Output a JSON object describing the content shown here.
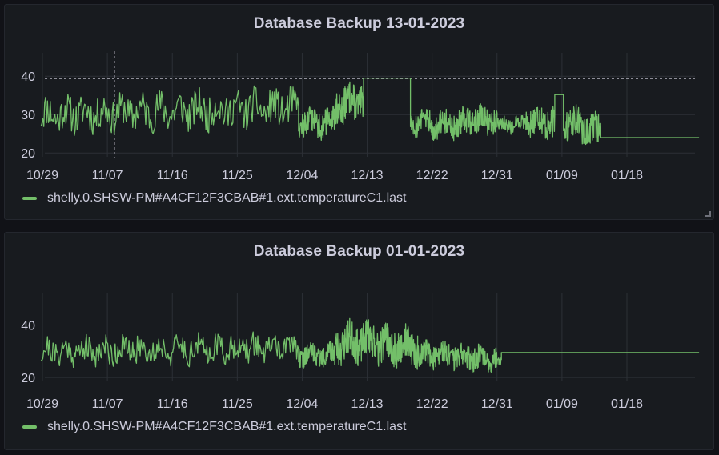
{
  "colors": {
    "series": "#73bf69",
    "grid": "#2c3036",
    "text": "#ccccdc",
    "panel": "#181b1f",
    "threshold": "#8e8e98"
  },
  "chart_data": [
    {
      "type": "line",
      "title": "Database Backup 13-01-2023",
      "y_ticks": [
        20,
        30,
        40
      ],
      "ylim": [
        19,
        44
      ],
      "x_range_days": [
        -2,
        91
      ],
      "x_ticks": [
        {
          "label": "10/29",
          "day": 0
        },
        {
          "label": "11/07",
          "day": 9
        },
        {
          "label": "11/16",
          "day": 18
        },
        {
          "label": "11/25",
          "day": 27
        },
        {
          "label": "12/04",
          "day": 36
        },
        {
          "label": "12/13",
          "day": 45
        },
        {
          "label": "12/22",
          "day": 54
        },
        {
          "label": "12/31",
          "day": 63
        },
        {
          "label": "01/09",
          "day": 72
        },
        {
          "label": "01/18",
          "day": 81
        }
      ],
      "threshold": 39.3,
      "vertical_marker_day": 10,
      "series": [
        {
          "name": "shelly.0.SHSW-PM#A4CF12F3CBAB#1.ext.temperatureC1.last",
          "segments": [
            {
              "start": -0.2,
              "end": 35.5,
              "center": 30,
              "amp": 4.5,
              "trend": 0.05,
              "seed": 11,
              "density": 2.6
            },
            {
              "start": 35.5,
              "end": 40.5,
              "center": 28,
              "amp": 3.5,
              "trend": 0,
              "seed": 12,
              "density": 7
            },
            {
              "start": 40.5,
              "end": 44.5,
              "center": 32,
              "amp": 4.5,
              "trend": 0.5,
              "seed": 13,
              "density": 7
            },
            {
              "start": 44.5,
              "end": 51.0,
              "flat": 39.5
            },
            {
              "start": 51.0,
              "end": 58.0,
              "center": 28.5,
              "amp": 3.5,
              "trend": -0.2,
              "seed": 14,
              "density": 7
            },
            {
              "start": 58.0,
              "end": 63.0,
              "center": 28.5,
              "amp": 3.5,
              "trend": 0,
              "seed": 15,
              "density": 7
            },
            {
              "start": 63.0,
              "end": 67.0,
              "center": 27.5,
              "amp": 2.0,
              "trend": 0,
              "seed": 16,
              "density": 5
            },
            {
              "start": 67.0,
              "end": 71.0,
              "center": 29,
              "amp": 4.0,
              "trend": -0.3,
              "seed": 17,
              "density": 7
            },
            {
              "start": 71.0,
              "end": 72.2,
              "flat": 35.2
            },
            {
              "start": 72.2,
              "end": 77.3,
              "center": 28.5,
              "amp": 4.0,
              "trend": -0.6,
              "seed": 18,
              "density": 7
            },
            {
              "start": 77.3,
              "end": 91.0,
              "flat": 24.0
            }
          ]
        }
      ]
    },
    {
      "type": "line",
      "title": "Database Backup 01-01-2023",
      "y_ticks": [
        20,
        40
      ],
      "ylim": [
        18.5,
        49
      ],
      "x_range_days": [
        -2,
        91
      ],
      "x_ticks": [
        {
          "label": "10/29",
          "day": 0
        },
        {
          "label": "11/07",
          "day": 9
        },
        {
          "label": "11/16",
          "day": 18
        },
        {
          "label": "11/25",
          "day": 27
        },
        {
          "label": "12/04",
          "day": 36
        },
        {
          "label": "12/13",
          "day": 45
        },
        {
          "label": "12/22",
          "day": 54
        },
        {
          "label": "12/31",
          "day": 63
        },
        {
          "label": "01/09",
          "day": 72
        },
        {
          "label": "01/18",
          "day": 81
        }
      ],
      "series": [
        {
          "name": "shelly.0.SHSW-PM#A4CF12F3CBAB#1.ext.temperatureC1.last",
          "segments": [
            {
              "start": -0.2,
              "end": 35.5,
              "center": 30,
              "amp": 5,
              "trend": 0.04,
              "seed": 21,
              "density": 2.6
            },
            {
              "start": 35.5,
              "end": 40.5,
              "center": 28.5,
              "amp": 4,
              "trend": 0,
              "seed": 22,
              "density": 7
            },
            {
              "start": 40.5,
              "end": 46.0,
              "center": 33,
              "amp": 7,
              "trend": 0.2,
              "seed": 23,
              "density": 7
            },
            {
              "start": 46.0,
              "end": 52.0,
              "center": 33,
              "amp": 7,
              "trend": -0.3,
              "seed": 24,
              "density": 7
            },
            {
              "start": 52.0,
              "end": 63.0,
              "center": 29,
              "amp": 4.5,
              "trend": -0.15,
              "seed": 25,
              "density": 7
            },
            {
              "start": 63.0,
              "end": 63.6,
              "center": 26,
              "amp": 2,
              "trend": 0,
              "seed": 26,
              "density": 6
            },
            {
              "start": 63.6,
              "end": 91.0,
              "flat": 29.5
            }
          ]
        }
      ]
    }
  ]
}
